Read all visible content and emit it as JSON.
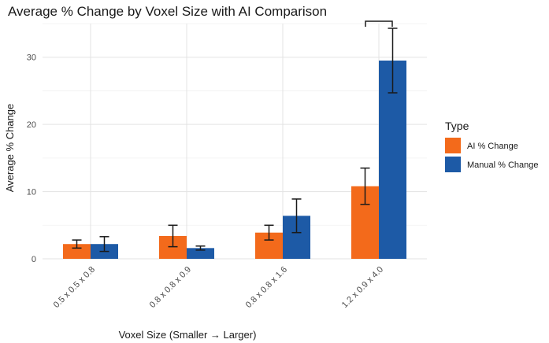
{
  "chart_data": {
    "type": "bar",
    "title": "Average % Change by Voxel Size with AI Comparison",
    "xlabel": "Voxel Size (Smaller → Larger)",
    "ylabel": "Average % Change",
    "categories": [
      "0.5 x 0.5 x 0.8",
      "0.8 x 0.8 x 0.9",
      "0.8 x 0.8 x 1.6",
      "1.2 x 0.9 x 4.0"
    ],
    "ylim": [
      0,
      35
    ],
    "yticks": [
      "0",
      "10",
      "20",
      "30"
    ],
    "grid": true,
    "legend": {
      "title": "Type",
      "position": "right"
    },
    "series": [
      {
        "name": "AI % Change",
        "color": "#f36a1b",
        "values": [
          2.2,
          3.4,
          3.9,
          10.8
        ],
        "error": [
          0.6,
          1.6,
          1.1,
          2.7
        ]
      },
      {
        "name": "Manual % Change",
        "color": "#1d5aa6",
        "values": [
          2.2,
          1.6,
          6.4,
          29.5
        ],
        "error": [
          1.1,
          0.3,
          2.5,
          4.8
        ]
      }
    ],
    "annotations": [
      {
        "type": "bracket",
        "category_index": 3,
        "label": ""
      }
    ]
  }
}
